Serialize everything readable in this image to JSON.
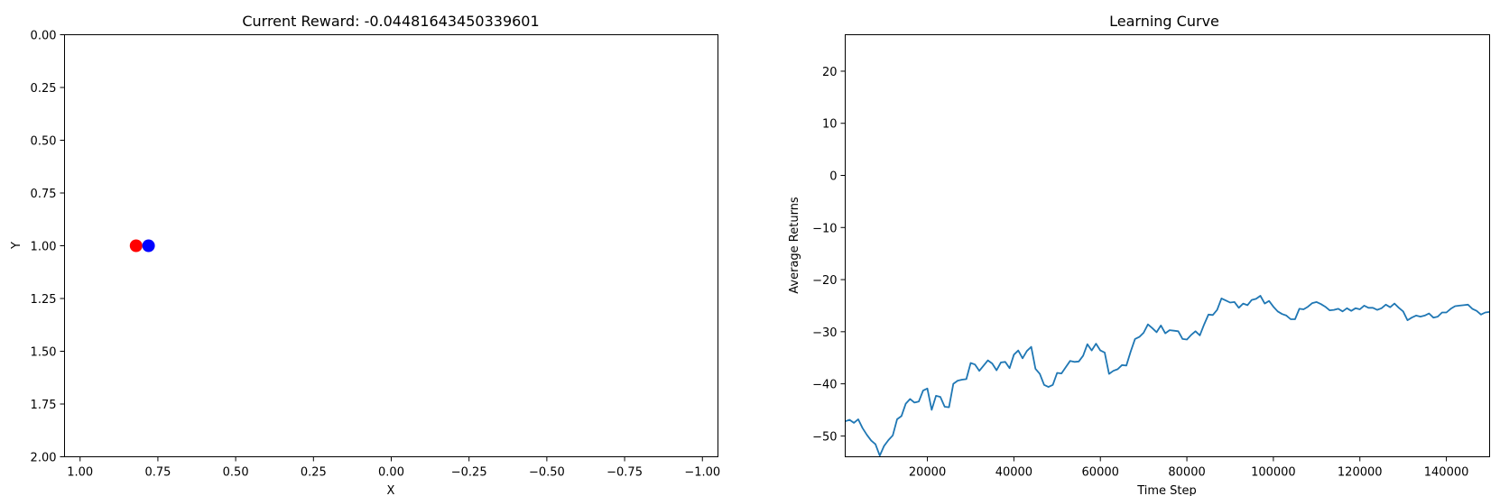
{
  "chart_data": [
    {
      "type": "scatter",
      "title": "Current Reward: -0.04481643450339601",
      "xlabel": "X",
      "ylabel": "Y",
      "xlim": [
        1.05,
        -1.05
      ],
      "ylim": [
        2.0,
        0.0
      ],
      "x_ticks": [
        "1.00",
        "0.75",
        "0.50",
        "0.25",
        "0.00",
        "−0.25",
        "−0.50",
        "−0.75",
        "−1.00"
      ],
      "x_tick_values": [
        1.0,
        0.75,
        0.5,
        0.25,
        0.0,
        -0.25,
        -0.5,
        -0.75,
        -1.0
      ],
      "y_ticks": [
        "0.00",
        "0.25",
        "0.50",
        "0.75",
        "1.00",
        "1.25",
        "1.50",
        "1.75",
        "2.00"
      ],
      "y_tick_values": [
        0.0,
        0.25,
        0.5,
        0.75,
        1.0,
        1.25,
        1.5,
        1.75,
        2.0
      ],
      "points": [
        {
          "x": 0.82,
          "y": 1.0,
          "color": "#ff0000"
        },
        {
          "x": 0.78,
          "y": 1.0,
          "color": "#0000ff"
        }
      ],
      "grid": false
    },
    {
      "type": "line",
      "title": "Learning Curve",
      "xlabel": "Time Step",
      "ylabel": "Average Returns",
      "xlim": [
        1000,
        150000
      ],
      "ylim": [
        -54,
        27
      ],
      "x_ticks": [
        "20000",
        "40000",
        "60000",
        "80000",
        "100000",
        "120000",
        "140000"
      ],
      "x_tick_values": [
        20000,
        40000,
        60000,
        80000,
        100000,
        120000,
        140000
      ],
      "y_ticks": [
        "20",
        "10",
        "0",
        "−10",
        "−20",
        "−30",
        "−40",
        "−50"
      ],
      "y_tick_values": [
        20,
        10,
        0,
        -10,
        -20,
        -30,
        -40,
        -50
      ],
      "color": "#1f77b4",
      "grid": false,
      "x": [
        1000,
        2000,
        3000,
        4000,
        5000,
        6000,
        7000,
        8000,
        9000,
        10000,
        11000,
        12000,
        13000,
        14000,
        15000,
        16000,
        17000,
        18000,
        19000,
        20000,
        21000,
        22000,
        23000,
        24000,
        25000,
        26000,
        27000,
        28000,
        29000,
        30000,
        31000,
        32000,
        33000,
        34000,
        35000,
        36000,
        37000,
        38000,
        39000,
        40000,
        41000,
        42000,
        43000,
        44000,
        45000,
        46000,
        47000,
        48000,
        49000,
        50000,
        51000,
        52000,
        53000,
        54000,
        55000,
        56000,
        57000,
        58000,
        59000,
        60000,
        61000,
        62000,
        63000,
        64000,
        65000,
        66000,
        67000,
        68000,
        69000,
        70000,
        71000,
        72000,
        73000,
        74000,
        75000,
        76000,
        77000,
        78000,
        79000,
        80000,
        81000,
        82000,
        83000,
        84000,
        85000,
        86000,
        87000,
        88000,
        89000,
        90000,
        91000,
        92000,
        93000,
        94000,
        95000,
        96000,
        97000,
        98000,
        99000,
        100000,
        101000,
        102000,
        103000,
        104000,
        105000,
        106000,
        107000,
        108000,
        109000,
        110000,
        111000,
        112000,
        113000,
        114000,
        115000,
        116000,
        117000,
        118000,
        119000,
        120000,
        121000,
        122000,
        123000,
        124000,
        125000,
        126000,
        127000,
        128000,
        129000,
        130000,
        131000,
        132000,
        133000,
        134000,
        135000,
        136000,
        137000,
        138000,
        139000,
        140000,
        141000,
        142000,
        143000,
        144000,
        145000,
        146000,
        147000,
        148000,
        149000,
        150000
      ],
      "y": [
        -47.2,
        -46.9,
        -47.5,
        -46.8,
        -48.5,
        -49.8,
        -50.9,
        -51.6,
        -53.8,
        -51.9,
        -50.8,
        -49.9,
        -46.8,
        -46.2,
        -43.8,
        -42.9,
        -43.6,
        -43.4,
        -41.3,
        -40.9,
        -45.0,
        -42.3,
        -42.5,
        -44.4,
        -44.5,
        -40.0,
        -39.4,
        -39.2,
        -39.1,
        -36.0,
        -36.3,
        -37.5,
        -36.5,
        -35.5,
        -36.1,
        -37.4,
        -35.9,
        -35.8,
        -37.0,
        -34.4,
        -33.6,
        -35.1,
        -33.7,
        -32.9,
        -37.1,
        -38.1,
        -40.2,
        -40.6,
        -40.2,
        -37.9,
        -38.0,
        -36.8,
        -35.6,
        -35.8,
        -35.7,
        -34.6,
        -32.4,
        -33.6,
        -32.3,
        -33.6,
        -34.0,
        -38.1,
        -37.5,
        -37.2,
        -36.4,
        -36.5,
        -33.8,
        -31.4,
        -31.0,
        -30.2,
        -28.6,
        -29.3,
        -30.1,
        -28.8,
        -30.3,
        -29.7,
        -29.8,
        -29.9,
        -31.4,
        -31.5,
        -30.6,
        -29.9,
        -30.7,
        -28.6,
        -26.7,
        -26.8,
        -25.8,
        -23.6,
        -24.0,
        -24.4,
        -24.3,
        -25.4,
        -24.6,
        -24.9,
        -23.9,
        -23.7,
        -23.1,
        -24.6,
        -24.1,
        -25.2,
        -26.1,
        -26.6,
        -26.9,
        -27.6,
        -27.6,
        -25.6,
        -25.7,
        -25.2,
        -24.5,
        -24.3,
        -24.7,
        -25.2,
        -25.9,
        -25.8,
        -25.6,
        -26.1,
        -25.5,
        -26.0,
        -25.5,
        -25.7,
        -25.0,
        -25.4,
        -25.4,
        -25.8,
        -25.5,
        -24.8,
        -25.3,
        -24.6,
        -25.4,
        -26.1,
        -27.8,
        -27.3,
        -26.9,
        -27.1,
        -26.9,
        -26.5,
        -27.3,
        -27.1,
        -26.3,
        -26.3,
        -25.6,
        -25.1,
        -25.0,
        -24.9,
        -24.8,
        -25.6,
        -26.0,
        -26.7,
        -26.3,
        -26.2
      ]
    }
  ]
}
